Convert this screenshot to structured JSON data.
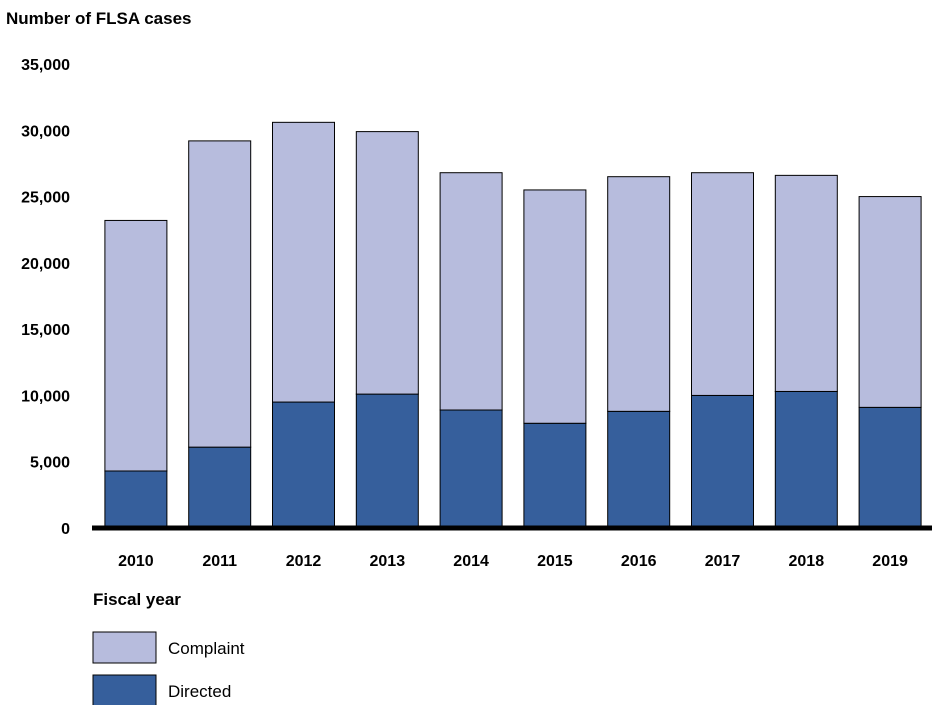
{
  "chart_data": {
    "type": "bar",
    "stacked": true,
    "ylabel": "Number of FLSA cases",
    "xlabel": "Fiscal year",
    "ylim": [
      0,
      35000
    ],
    "yticks": [
      "0",
      "5,000",
      "10,000",
      "15,000",
      "20,000",
      "25,000",
      "30,000",
      "35,000"
    ],
    "categories": [
      "2010",
      "2011",
      "2012",
      "2013",
      "2014",
      "2015",
      "2016",
      "2017",
      "2018",
      "2019"
    ],
    "series": [
      {
        "name": "Directed",
        "color": "#365f9c",
        "values": [
          4300,
          6100,
          9500,
          10100,
          8900,
          7900,
          8800,
          10000,
          10300,
          9100
        ]
      },
      {
        "name": "Complaint",
        "color": "#b7bcdd",
        "values": [
          18900,
          23100,
          21100,
          19800,
          17900,
          17600,
          17700,
          16800,
          16300,
          15900
        ]
      }
    ],
    "legend": {
      "placement": "bottom-left",
      "items": [
        {
          "label": "Complaint",
          "color": "#b7bcdd"
        },
        {
          "label": "Directed",
          "color": "#365f9c"
        }
      ]
    },
    "grid": false
  }
}
